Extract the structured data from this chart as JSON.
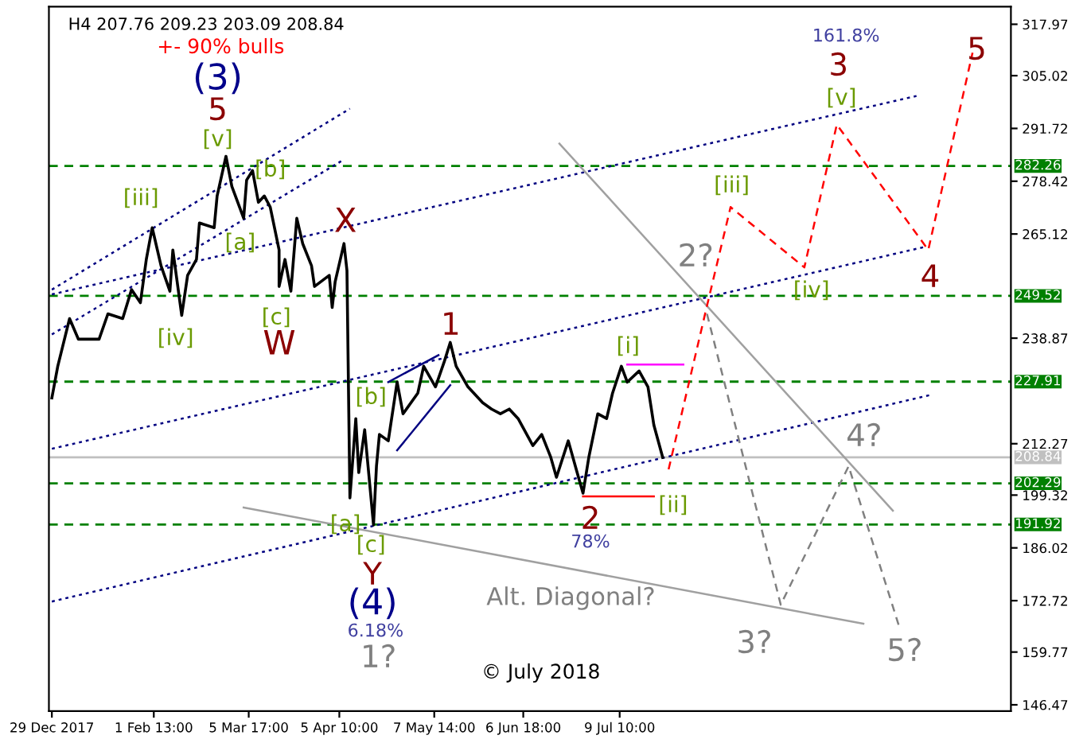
{
  "chart_data": {
    "type": "line",
    "title": "H4 207.76 209.23 203.09 208.84",
    "series": [
      {
        "color": "#000000",
        "line_style": "solid",
        "x": [
          "2017-12-29",
          "2017-12-31",
          "2018-01-04",
          "2018-01-07",
          "2018-01-14",
          "2018-01-17",
          "2018-01-22",
          "2018-01-25",
          "2018-01-28",
          "2018-01-30",
          "2018-02-01",
          "2018-02-04",
          "2018-02-07",
          "2018-02-08",
          "2018-02-11",
          "2018-02-13",
          "2018-02-16",
          "2018-02-17",
          "2018-02-22",
          "2018-02-23",
          "2018-02-26",
          "2018-02-28",
          "2018-03-04",
          "2018-03-05",
          "2018-03-07",
          "2018-03-09",
          "2018-03-11",
          "2018-03-13",
          "2018-03-16",
          "2018-03-16",
          "2018-03-18",
          "2018-03-20",
          "2018-03-22",
          "2018-03-24",
          "2018-03-27",
          "2018-03-28",
          "2018-04-02",
          "2018-04-03",
          "2018-04-04",
          "2018-04-07",
          "2018-04-08",
          "2018-04-09",
          "2018-04-11",
          "2018-04-12",
          "2018-04-14",
          "2018-04-15",
          "2018-04-17",
          "2018-04-18",
          "2018-04-19",
          "2018-04-22",
          "2018-04-25",
          "2018-04-27",
          "2018-05-02",
          "2018-05-04",
          "2018-05-08",
          "2018-05-11",
          "2018-05-13",
          "2018-05-15",
          "2018-05-19",
          "2018-05-24",
          "2018-05-27",
          "2018-05-30",
          "2018-06-02",
          "2018-06-05",
          "2018-06-10",
          "2018-06-13",
          "2018-06-16",
          "2018-06-18",
          "2018-06-22",
          "2018-06-25",
          "2018-06-27",
          "2018-06-29",
          "2018-07-02",
          "2018-07-05",
          "2018-07-07",
          "2018-07-10",
          "2018-07-12",
          "2018-07-16",
          "2018-07-19",
          "2018-07-21",
          "2018-07-24"
        ],
        "values": [
          223.8,
          231.8,
          243.8,
          238.6,
          238.6,
          245.0,
          243.8,
          251.1,
          247.8,
          258.7,
          266.7,
          257.1,
          250.7,
          261.1,
          244.6,
          254.7,
          258.7,
          267.9,
          266.7,
          274.7,
          284.7,
          277.1,
          269.1,
          278.7,
          281.1,
          273.1,
          274.7,
          271.9,
          261.1,
          251.9,
          258.7,
          250.7,
          269.1,
          262.7,
          257.1,
          251.9,
          254.7,
          246.6,
          253.1,
          262.7,
          255.9,
          198.6,
          218.6,
          205.0,
          215.8,
          207.8,
          191.8,
          206.6,
          214.6,
          213.0,
          227.8,
          219.8,
          225.0,
          231.8,
          226.6,
          233.0,
          237.8,
          231.8,
          226.6,
          222.6,
          221.0,
          219.8,
          221.0,
          218.6,
          211.8,
          214.6,
          209.0,
          203.8,
          213.0,
          205.0,
          199.8,
          209.0,
          219.8,
          218.6,
          225.0,
          231.8,
          227.8,
          230.6,
          226.6,
          217.0,
          208.8
        ]
      },
      {
        "color": "#000080",
        "line_style": "dotted",
        "x": [
          "2017-12-29",
          "2018-04-09"
        ],
        "values": [
          251.1,
          296.7
        ]
      },
      {
        "color": "#000080",
        "line_style": "dotted",
        "x": [
          "2017-12-29",
          "2018-04-07"
        ],
        "values": [
          239.8,
          283.9
        ]
      },
      {
        "color": "#000080",
        "line_style": "dotted",
        "x": [
          "2017-12-29",
          "2018-10-18"
        ],
        "values": [
          249.9,
          299.9
        ]
      },
      {
        "color": "#000080",
        "line_style": "dotted",
        "x": [
          "2017-12-29",
          "2018-10-21"
        ],
        "values": [
          211.0,
          261.9
        ]
      },
      {
        "color": "#000080",
        "line_style": "dotted",
        "x": [
          "2017-12-29",
          "2018-10-23"
        ],
        "values": [
          172.5,
          224.6
        ]
      },
      {
        "color": "#000080",
        "line_style": "solid",
        "x": [
          "2018-04-25",
          "2018-05-13"
        ],
        "values": [
          210.6,
          227.0
        ]
      },
      {
        "color": "#000080",
        "line_style": "solid",
        "x": [
          "2018-04-22",
          "2018-05-09"
        ],
        "values": [
          227.8,
          234.6
        ]
      },
      {
        "color": "#a0a0a0",
        "line_style": "solid",
        "x": [
          "2018-03-04",
          "2018-09-30"
        ],
        "values": [
          196.2,
          166.9
        ]
      },
      {
        "color": "#a0a0a0",
        "line_style": "solid",
        "x": [
          "2018-06-19",
          "2018-10-10"
        ],
        "values": [
          287.9,
          195.4
        ]
      },
      {
        "color": "#ff0000",
        "line_style": "dashed",
        "x": [
          "2018-07-26",
          "2018-08-08",
          "2018-08-16",
          "2018-09-10",
          "2018-09-21",
          "2018-10-22",
          "2018-11-06"
        ],
        "values": [
          205.8,
          247.0,
          271.9,
          256.7,
          292.7,
          261.1,
          310.8
        ]
      },
      {
        "color": "#808080",
        "line_style": "dashed",
        "x": [
          "2018-08-08",
          "2018-09-02",
          "2018-09-25",
          "2018-10-12"
        ],
        "values": [
          245.0,
          171.7,
          206.6,
          166.5
        ]
      },
      {
        "color": "#ff00ff",
        "line_style": "solid",
        "x": [
          "2018-07-12",
          "2018-07-31"
        ],
        "values": [
          232.2,
          232.2
        ]
      },
      {
        "color": "#ff0000",
        "line_style": "solid",
        "x": [
          "2018-06-27",
          "2018-07-21"
        ],
        "values": [
          199.0,
          199.0
        ]
      }
    ],
    "ref_lines": [
      {
        "axis": "y",
        "value": 282.26,
        "label": "282.26",
        "color": "#008000",
        "line_style": "dashed"
      },
      {
        "axis": "y",
        "value": 249.52,
        "label": "249.52",
        "color": "#008000",
        "line_style": "dashed"
      },
      {
        "axis": "y",
        "value": 227.91,
        "label": "227.91",
        "color": "#008000",
        "line_style": "dashed"
      },
      {
        "axis": "y",
        "value": 208.84,
        "label": "208.84",
        "color": "#c0c0c0",
        "line_style": "solid"
      },
      {
        "axis": "y",
        "value": 202.29,
        "label": "202.29",
        "color": "#008000",
        "line_style": "dashed"
      },
      {
        "axis": "y",
        "value": 191.92,
        "label": "191.92",
        "color": "#008000",
        "line_style": "dashed"
      }
    ],
    "annotations": [
      "+- 90% bulls",
      "(3)",
      "5",
      "[v]",
      "[iii]",
      "[iv]",
      "[b]",
      "[a]",
      "[c]",
      "W",
      "X",
      "1",
      "[b]",
      "[a]",
      "[c]",
      "Y",
      "(4)",
      "6.18%",
      "1?",
      "Alt. Diagonal?",
      "[i]",
      "2",
      "78%",
      "[ii]",
      "2?",
      "[iii]",
      "[iv]",
      "3",
      "161.8%",
      "[v]",
      "4",
      "5",
      "4?",
      "3?",
      "5?",
      "© July 2018"
    ],
    "xlim": [
      "2017-12-28",
      "2018-11-19"
    ],
    "xticks": [
      {
        "value": "2017-12-29",
        "label": "29 Dec 2017"
      },
      {
        "value": "2018-02-01T13:00",
        "label": "1 Feb 13:00"
      },
      {
        "value": "2018-03-05T17:00",
        "label": "5 Mar 17:00"
      },
      {
        "value": "2018-04-05T10:00",
        "label": "5 Apr 10:00"
      },
      {
        "value": "2018-05-07T14:00",
        "label": "7 May 14:00"
      },
      {
        "value": "2018-06-06T18:00",
        "label": "6 Jun 18:00"
      },
      {
        "value": "2018-07-09T10:00",
        "label": "9 Jul 10:00"
      }
    ],
    "ylim": [
      144.9,
      322.4
    ],
    "yticks": [
      317.97,
      305.02,
      291.72,
      278.42,
      265.12,
      238.87,
      212.27,
      199.32,
      186.02,
      172.72,
      159.77,
      146.47
    ],
    "grid": false,
    "legend": false
  }
}
